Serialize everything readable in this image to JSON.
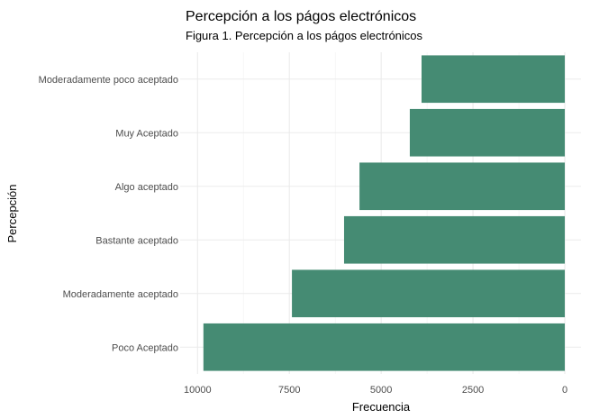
{
  "chart_data": {
    "type": "bar",
    "orientation": "horizontal",
    "title": "Percepción a los págos electrónicos",
    "subtitle": "Figura 1. Percepción a los págos electrónicos",
    "xlabel": "Frecuencia",
    "ylabel": "Percepción",
    "x_reversed": true,
    "xlim": [
      0,
      10000
    ],
    "xticks": [
      10000,
      7500,
      5000,
      2500,
      0
    ],
    "grid": true,
    "bar_color": "#458B73",
    "categories": [
      "Moderadamente poco aceptado",
      "Muy Aceptado",
      "Algo aceptado",
      "Bastante aceptado",
      "Moderadamente aceptado",
      "Poco Aceptado"
    ],
    "values": [
      3900,
      4220,
      5590,
      6010,
      7430,
      9840
    ]
  }
}
